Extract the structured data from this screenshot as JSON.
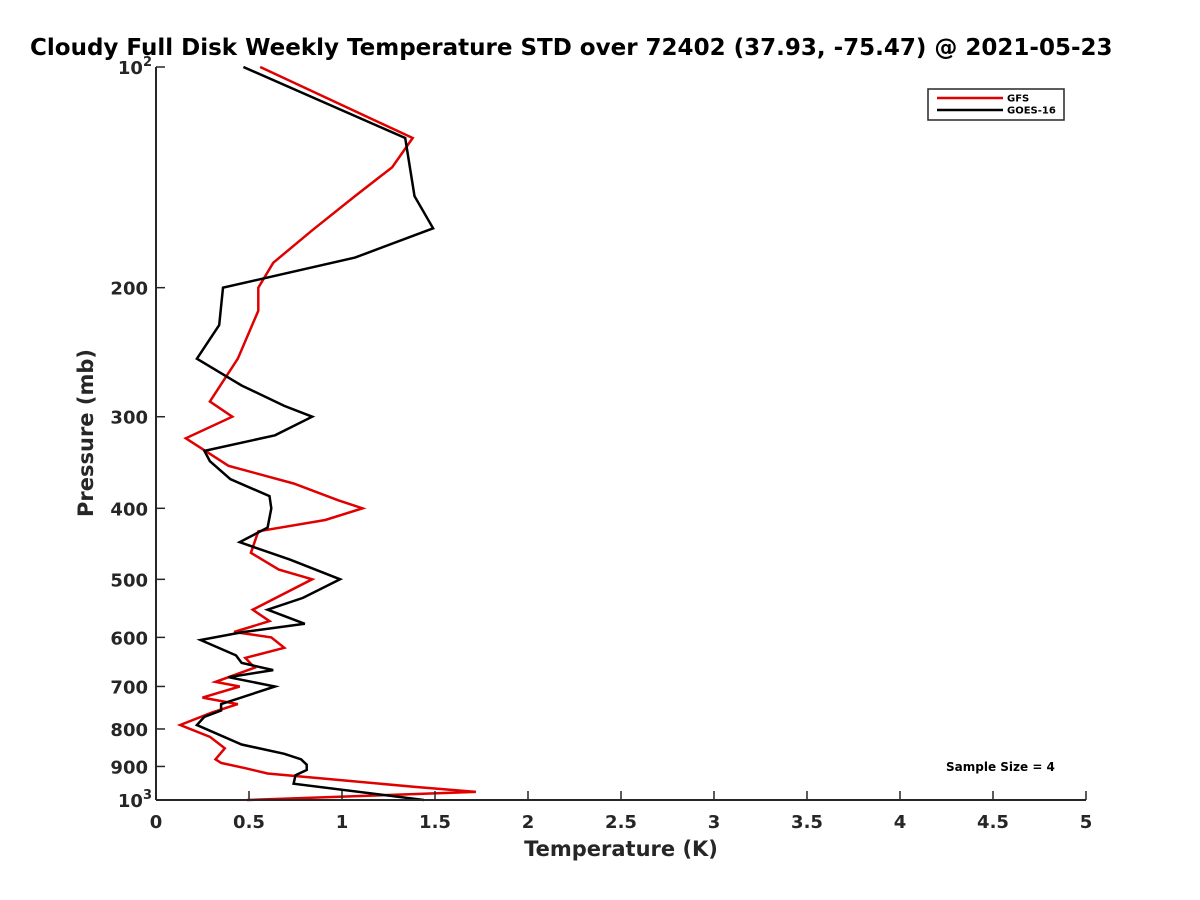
{
  "chart_data": {
    "type": "line",
    "title": "Cloudy Full Disk Weekly Temperature STD over 72402 (37.93, -75.47) @ 2021-05-23",
    "xlabel": "Temperature (K)",
    "ylabel": "Pressure (mb)",
    "xlim": [
      0,
      5
    ],
    "ylim": [
      100,
      1000
    ],
    "y_scale": "log",
    "y_reversed": true,
    "x_ticks": [
      {
        "value": 0,
        "label": "0"
      },
      {
        "value": 0.5,
        "label": "0.5"
      },
      {
        "value": 1,
        "label": "1"
      },
      {
        "value": 1.5,
        "label": "1.5"
      },
      {
        "value": 2,
        "label": "2"
      },
      {
        "value": 2.5,
        "label": "2.5"
      },
      {
        "value": 3,
        "label": "3"
      },
      {
        "value": 3.5,
        "label": "3.5"
      },
      {
        "value": 4,
        "label": "4"
      },
      {
        "value": 4.5,
        "label": "4.5"
      },
      {
        "value": 5,
        "label": "5"
      }
    ],
    "y_ticks": [
      {
        "value": 100,
        "label": "10",
        "exp": "2"
      },
      {
        "value": 200,
        "label": "200"
      },
      {
        "value": 300,
        "label": "300"
      },
      {
        "value": 400,
        "label": "400"
      },
      {
        "value": 500,
        "label": "500"
      },
      {
        "value": 600,
        "label": "600"
      },
      {
        "value": 700,
        "label": "700"
      },
      {
        "value": 800,
        "label": "800"
      },
      {
        "value": 900,
        "label": "900"
      },
      {
        "value": 1000,
        "label": "10",
        "exp": "3"
      }
    ],
    "grid": false,
    "legend_position": "top-right",
    "annotation": "Sample Size = 4",
    "series": [
      {
        "name": "GFS",
        "color": "#e00000",
        "points": [
          [
            0.56,
            100
          ],
          [
            1.38,
            125
          ],
          [
            1.27,
            137
          ],
          [
            1.07,
            150
          ],
          [
            0.84,
            167
          ],
          [
            0.63,
            185
          ],
          [
            0.55,
            200
          ],
          [
            0.55,
            215
          ],
          [
            0.44,
            250
          ],
          [
            0.29,
            286
          ],
          [
            0.41,
            300
          ],
          [
            0.16,
            321
          ],
          [
            0.39,
            350
          ],
          [
            0.74,
            370
          ],
          [
            0.98,
            390
          ],
          [
            1.11,
            400
          ],
          [
            0.91,
            415
          ],
          [
            0.55,
            430
          ],
          [
            0.51,
            460
          ],
          [
            0.66,
            485
          ],
          [
            0.84,
            500
          ],
          [
            0.52,
            550
          ],
          [
            0.61,
            570
          ],
          [
            0.42,
            590
          ],
          [
            0.62,
            600
          ],
          [
            0.69,
            620
          ],
          [
            0.48,
            640
          ],
          [
            0.53,
            660
          ],
          [
            0.32,
            690
          ],
          [
            0.45,
            700
          ],
          [
            0.25,
            725
          ],
          [
            0.44,
            740
          ],
          [
            0.3,
            760
          ],
          [
            0.13,
            790
          ],
          [
            0.29,
            820
          ],
          [
            0.37,
            850
          ],
          [
            0.32,
            880
          ],
          [
            0.35,
            890
          ],
          [
            0.48,
            905
          ],
          [
            0.6,
            920
          ],
          [
            1.0,
            940
          ],
          [
            1.4,
            960
          ],
          [
            1.72,
            975
          ],
          [
            0.49,
            1000
          ]
        ]
      },
      {
        "name": "GOES-16",
        "color": "#000000",
        "points": [
          [
            0.47,
            100
          ],
          [
            1.34,
            125
          ],
          [
            1.39,
            150
          ],
          [
            1.49,
            166
          ],
          [
            1.07,
            182
          ],
          [
            0.36,
            200
          ],
          [
            0.34,
            225
          ],
          [
            0.22,
            250
          ],
          [
            0.46,
            272
          ],
          [
            0.69,
            290
          ],
          [
            0.84,
            300
          ],
          [
            0.64,
            318
          ],
          [
            0.26,
            334
          ],
          [
            0.29,
            345
          ],
          [
            0.4,
            365
          ],
          [
            0.61,
            385
          ],
          [
            0.62,
            400
          ],
          [
            0.6,
            425
          ],
          [
            0.45,
            445
          ],
          [
            0.72,
            470
          ],
          [
            0.99,
            500
          ],
          [
            0.79,
            530
          ],
          [
            0.6,
            550
          ],
          [
            0.8,
            575
          ],
          [
            0.47,
            590
          ],
          [
            0.24,
            605
          ],
          [
            0.43,
            635
          ],
          [
            0.46,
            650
          ],
          [
            0.63,
            665
          ],
          [
            0.39,
            680
          ],
          [
            0.64,
            700
          ],
          [
            0.35,
            740
          ],
          [
            0.35,
            755
          ],
          [
            0.26,
            770
          ],
          [
            0.22,
            790
          ],
          [
            0.46,
            840
          ],
          [
            0.69,
            865
          ],
          [
            0.78,
            880
          ],
          [
            0.81,
            895
          ],
          [
            0.81,
            910
          ],
          [
            0.75,
            925
          ],
          [
            0.74,
            950
          ],
          [
            1.44,
            1000
          ]
        ]
      }
    ]
  }
}
